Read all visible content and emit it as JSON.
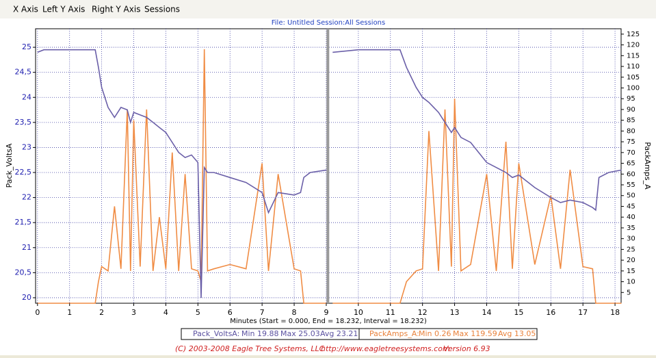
{
  "menu": [
    "X Axis",
    "Left Y Axis",
    "Right Y Axis",
    "Sessions"
  ],
  "header": "File: Untitled   Session:All Sessions",
  "chart_data": {
    "type": "line",
    "xlabel": "Minutes (Start = 0.000,  End = 18.232,  Interval =  18.232)",
    "x": [
      0,
      0.2,
      0.5,
      1,
      1.5,
      1.8,
      1.9,
      2,
      2.2,
      2.4,
      2.6,
      2.8,
      2.9,
      3,
      3.2,
      3.4,
      3.6,
      3.8,
      4,
      4.2,
      4.4,
      4.6,
      4.8,
      5,
      5.1,
      5.2,
      5.3,
      5.5,
      6,
      6.5,
      7,
      7.2,
      7.5,
      8,
      8.2,
      8.3,
      8.5,
      9,
      9.05,
      9.2,
      10,
      11,
      11.3,
      11.5,
      11.8,
      12,
      12.2,
      12.5,
      12.7,
      12.9,
      13,
      13.2,
      13.5,
      14,
      14.3,
      14.6,
      14.8,
      15,
      15.5,
      16,
      16.3,
      16.6,
      17,
      17.3,
      17.4,
      17.5,
      17.8,
      18.2
    ],
    "series": [
      {
        "name": "Pack_VoltsA",
        "color": "#6a5fa8",
        "values": [
          24.9,
          24.95,
          24.95,
          24.95,
          24.95,
          24.95,
          24.6,
          24.2,
          23.8,
          23.6,
          23.8,
          23.75,
          23.5,
          23.7,
          23.65,
          23.6,
          23.5,
          23.4,
          23.3,
          23.1,
          22.9,
          22.8,
          22.85,
          22.7,
          20.0,
          22.6,
          22.5,
          22.5,
          22.4,
          22.3,
          22.1,
          21.7,
          22.1,
          22.05,
          22.1,
          22.4,
          22.5,
          22.55,
          null,
          24.9,
          24.95,
          24.95,
          24.95,
          24.6,
          24.2,
          24.0,
          23.9,
          23.7,
          23.5,
          23.3,
          23.4,
          23.2,
          23.1,
          22.7,
          22.6,
          22.5,
          22.4,
          22.45,
          22.2,
          22.0,
          21.9,
          21.95,
          21.9,
          21.8,
          21.75,
          22.4,
          22.5,
          22.55
        ]
      },
      {
        "name": "PackAmps_A",
        "color": "#f08c44",
        "axis": "y2",
        "values": [
          0,
          0,
          0,
          0,
          0,
          0,
          10,
          17,
          15,
          45,
          16,
          90,
          15,
          85,
          17,
          90,
          15,
          40,
          16,
          70,
          15,
          60,
          16,
          15,
          10,
          118,
          15,
          16,
          18,
          16,
          65,
          15,
          60,
          16,
          15,
          0,
          0,
          0,
          null,
          0,
          0,
          0,
          0,
          10,
          15,
          16,
          80,
          15,
          90,
          17,
          95,
          15,
          18,
          60,
          15,
          75,
          16,
          65,
          18,
          50,
          16,
          62,
          17,
          16,
          0,
          0,
          0,
          0
        ]
      }
    ],
    "xlim": [
      -0.06,
      18.19
    ],
    "xticks": [
      0,
      1,
      2,
      3,
      4,
      5,
      6,
      7,
      8,
      9,
      10,
      11,
      12,
      13,
      14,
      15,
      16,
      17,
      18
    ],
    "ylim": [
      19.89,
      25.37
    ],
    "yticks": [
      20,
      {
        "value": 20.5,
        "label": "20,5"
      },
      21,
      {
        "value": 21.5,
        "label": "21,5"
      },
      22,
      {
        "value": 22.5,
        "label": "22,5"
      },
      23,
      {
        "value": 23.5,
        "label": "23,5"
      },
      24,
      {
        "value": 24.5,
        "label": "24,5"
      },
      25
    ],
    "y2lim": [
      0,
      127.5
    ],
    "y2ticks": [
      5,
      10,
      15,
      20,
      25,
      30,
      35,
      40,
      45,
      50,
      55,
      60,
      65,
      70,
      75,
      80,
      85,
      90,
      95,
      100,
      105,
      110,
      115,
      120,
      125
    ],
    "grid": true
  },
  "stats": [
    [
      "Pack_VoltsA:",
      "Min 19.88",
      "Max 25.03",
      "Avg 23.21"
    ],
    [
      "PackAmps_A:",
      "Min 0.26",
      "Max 119.59",
      "Avg 13.05"
    ]
  ],
  "footer": [
    "(C) 2003-2008 Eagle Tree Systems, LLC",
    "http://www.eagletreesystems.com",
    "Version 6.93"
  ]
}
